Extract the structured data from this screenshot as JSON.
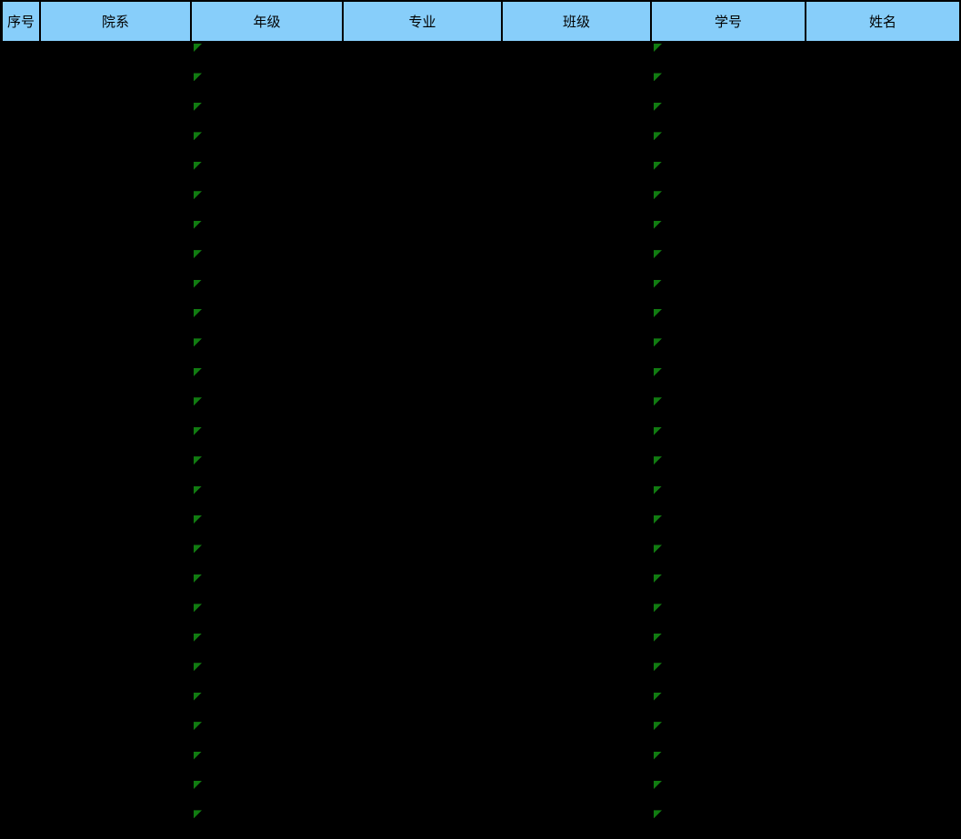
{
  "window": {
    "background_color": "#000000"
  },
  "table": {
    "border_color": "#000000",
    "header": {
      "background_color": "#87CEFA",
      "text_color": "#000000",
      "columns": [
        {
          "label": "序号"
        },
        {
          "label": "院系"
        },
        {
          "label": "年级"
        },
        {
          "label": "专业"
        },
        {
          "label": "班级"
        },
        {
          "label": "学号"
        },
        {
          "label": "姓名"
        }
      ]
    },
    "body": {
      "row_count": 27,
      "rows_empty": true,
      "indicator_color": "#117C11",
      "indicator_icon": "error-indicator-triangle",
      "indicator_columns": [
        "年级",
        "学号"
      ]
    }
  }
}
